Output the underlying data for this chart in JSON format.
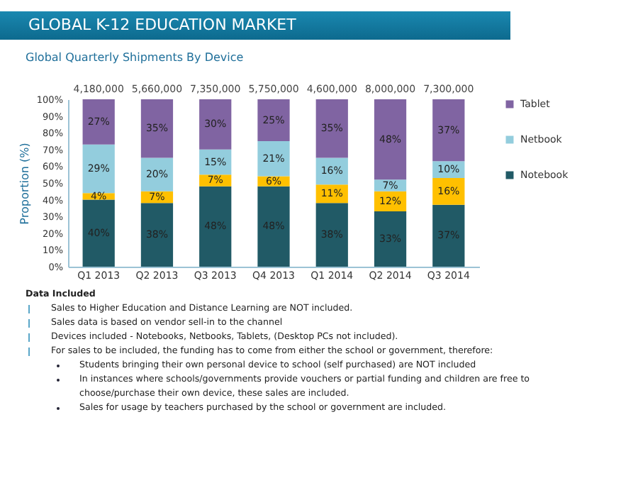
{
  "chart_data": {
    "type": "bar",
    "title": "GLOBAL K-12 EDUCATION MARKET",
    "subtitle": "Global Quarterly Shipments By Device",
    "ylabel": "Proportion (%)",
    "categories": [
      "Q1 2013",
      "Q2 2013",
      "Q3 2013",
      "Q4 2013",
      "Q1 2014",
      "Q2 2014",
      "Q3 2014"
    ],
    "stacked": true,
    "legend": "right",
    "ylim": [
      0,
      100
    ],
    "yticks": [
      {
        "value": 0,
        "label": "0%"
      },
      {
        "value": 10,
        "label": "10%"
      },
      {
        "value": 20,
        "label": "20%"
      },
      {
        "value": 30,
        "label": "30%"
      },
      {
        "value": 40,
        "label": "40%"
      },
      {
        "value": 50,
        "label": "50%"
      },
      {
        "value": 60,
        "label": "60%"
      },
      {
        "value": 70,
        "label": "70%"
      },
      {
        "value": 80,
        "label": "80%"
      },
      {
        "value": 90,
        "label": "90%"
      },
      {
        "value": 100,
        "label": "100%"
      }
    ],
    "series": [
      {
        "name": "Notebook",
        "color": "#215a66",
        "values": [
          40,
          38,
          48,
          48,
          38,
          33,
          37
        ],
        "value_labels": [
          "40%",
          "38%",
          "48%",
          "48%",
          "38%",
          "33%",
          "37%"
        ]
      },
      {
        "color": "#ffc000",
        "values": [
          4,
          7,
          7,
          6,
          11,
          12,
          16
        ],
        "value_labels": [
          "4%",
          "7%",
          "7%",
          "6%",
          "11%",
          "12%",
          "16%"
        ]
      },
      {
        "name": "Netbook",
        "color": "#93cddd",
        "values": [
          29,
          20,
          15,
          21,
          16,
          7,
          10
        ],
        "value_labels": [
          "29%",
          "20%",
          "15%",
          "21%",
          "16%",
          "7%",
          "10%"
        ]
      },
      {
        "name": "Tablet",
        "color": "#8064a2",
        "values": [
          27,
          35,
          30,
          25,
          35,
          48,
          37
        ],
        "value_labels": [
          "27%",
          "35%",
          "30%",
          "25%",
          "35%",
          "48%",
          "37%"
        ]
      }
    ],
    "annotations": [
      {
        "text": "4,180,000",
        "x": "Q1 2013",
        "y": 100
      },
      {
        "text": "5,660,000",
        "x": "Q2 2013",
        "y": 100
      },
      {
        "text": "7,350,000",
        "x": "Q3 2013",
        "y": 100
      },
      {
        "text": "5,750,000",
        "x": "Q4 2013",
        "y": 100
      },
      {
        "text": "4,600,000",
        "x": "Q1 2014",
        "y": 100
      },
      {
        "text": "8,000,000",
        "x": "Q2 2014",
        "y": 100
      },
      {
        "text": "7,300,000",
        "x": "Q3 2014",
        "y": 100
      },
      "Data Included",
      "Sales to Higher Education and Distance Learning are NOT included.",
      "Sales data is based on vendor sell-in to the channel",
      "Devices included - Notebooks, Netbooks, Tablets, (Desktop PCs not included).",
      "For sales to be included, the funding has to come from either the school or government, therefore:",
      "Students bringing their own personal device to school (self purchased) are NOT included",
      "In instances where schools/governments provide vouchers or partial funding and children are free to choose/purchase their own device, these sales are included.",
      "Sales for usage by teachers purchased by the school or government are included."
    ]
  }
}
